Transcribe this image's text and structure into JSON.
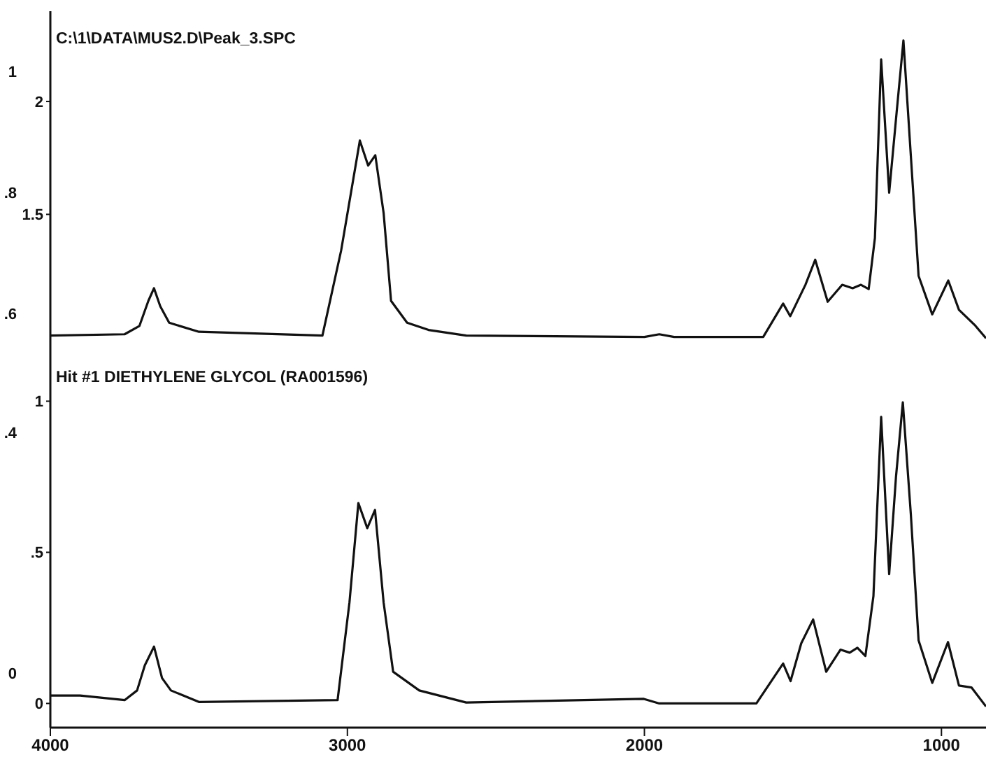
{
  "chart_data": [
    {
      "type": "line",
      "annotations": [
        "C:\\1\\DATA\\MUS2.D\\Peak_3.SPC"
      ],
      "xlim": [
        4000,
        850
      ],
      "ylim": [
        0.9,
        2.4
      ],
      "yticks": [
        2,
        1.5
      ],
      "y2lim": [
        0.54,
        1.1
      ],
      "y2ticks": [
        1,
        {
          "value": 0.8,
          "label": ".8"
        },
        {
          "value": 0.6,
          "label": ".6"
        }
      ],
      "tick_labels": "y",
      "marker": "none",
      "line_style": "solid",
      "series": [
        {
          "color": "#111111",
          "x": [
            4000,
            3750,
            3700,
            3670,
            3651,
            3630,
            3600,
            3500,
            3084,
            3021,
            2958,
            2930,
            2906,
            2878,
            2853,
            2799,
            2727,
            2600,
            2000,
            1950,
            1900,
            1600,
            1533,
            1509,
            1458,
            1425,
            1383,
            1334,
            1299,
            1271,
            1245,
            1224,
            1203,
            1176,
            1151,
            1128,
            1103,
            1077,
            1031,
            977,
            941,
            886,
            850
          ],
          "values": [
            0.963,
            0.969,
            1.006,
            1.117,
            1.173,
            1.093,
            1.02,
            0.98,
            0.963,
            1.34,
            1.827,
            1.716,
            1.762,
            1.506,
            1.117,
            1.02,
            0.988,
            0.963,
            0.957,
            0.969,
            0.957,
            0.957,
            1.105,
            1.049,
            1.188,
            1.299,
            1.113,
            1.188,
            1.173,
            1.188,
            1.169,
            1.395,
            2.187,
            1.596,
            1.95,
            2.27,
            1.759,
            1.228,
            1.057,
            1.207,
            1.077,
            1.007,
            0.951
          ]
        }
      ]
    },
    {
      "type": "line",
      "annotations": [
        "Hit #1 DIETHYLENE GLYCOL (RA001596)"
      ],
      "xlim": [
        4000,
        850
      ],
      "xticks": [
        4000,
        3000,
        2000,
        1000
      ],
      "ylim": [
        -0.08,
        1.17
      ],
      "yticks": [
        1,
        {
          "value": 0.5,
          "label": ".5"
        },
        0
      ],
      "y2lim": [
        -0.09,
        0.537
      ],
      "y2ticks": [
        {
          "value": 0.4,
          "label": ".4"
        },
        0
      ],
      "marker": "none",
      "line_style": "solid",
      "series": [
        {
          "color": "#111111",
          "x": [
            4000,
            3900,
            3750,
            3708,
            3682,
            3651,
            3624,
            3594,
            3500,
            3033,
            2993,
            2963,
            2933,
            2907,
            2878,
            2846,
            2758,
            2600,
            2002,
            1950,
            1623,
            1533,
            1508,
            1472,
            1432,
            1388,
            1340,
            1309,
            1283,
            1256,
            1229,
            1203,
            1176,
            1153,
            1130,
            1103,
            1077,
            1031,
            978,
            941,
            899,
            850
          ],
          "values": [
            0.026,
            0.026,
            0.011,
            0.043,
            0.126,
            0.188,
            0.084,
            0.043,
            0.005,
            0.011,
            0.334,
            0.663,
            0.58,
            0.64,
            0.334,
            0.105,
            0.043,
            0.003,
            0.015,
            0.0,
            0.0,
            0.132,
            0.074,
            0.199,
            0.278,
            0.105,
            0.178,
            0.168,
            0.184,
            0.157,
            0.355,
            0.948,
            0.428,
            0.75,
            0.996,
            0.625,
            0.209,
            0.068,
            0.203,
            0.059,
            0.053,
            -0.01
          ]
        }
      ]
    }
  ]
}
